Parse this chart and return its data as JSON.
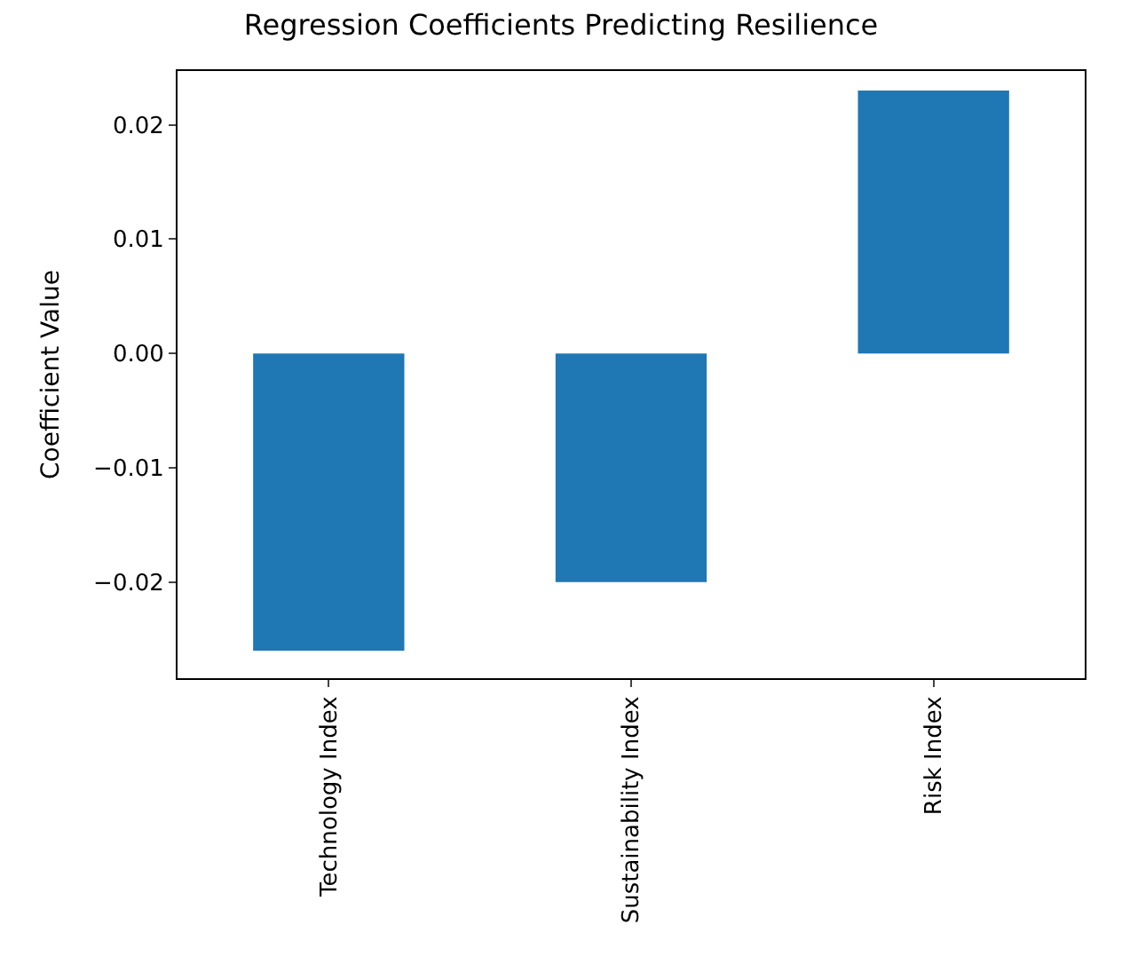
{
  "chart_data": {
    "type": "bar",
    "title": "Regression Coefficients Predicting Resilience",
    "ylabel": "Coefficient Value",
    "categories": [
      "Technology Index",
      "Sustainability Index",
      "Risk Index"
    ],
    "values": [
      -0.026,
      -0.02,
      0.023
    ],
    "color": "#1f77b4",
    "ylim": [
      -0.0284,
      0.0247
    ],
    "yticks": [
      {
        "value": -0.02,
        "label": "−0.02"
      },
      {
        "value": -0.01,
        "label": "−0.01"
      },
      {
        "value": 0,
        "label": "0.00"
      },
      {
        "value": 0.01,
        "label": "0.01"
      },
      {
        "value": 0.02,
        "label": "0.02"
      }
    ],
    "legend": false
  }
}
